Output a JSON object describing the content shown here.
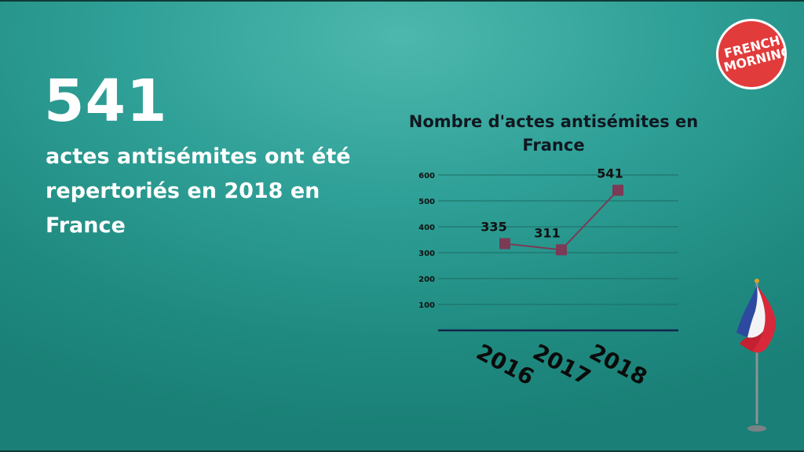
{
  "headline": {
    "value": "541",
    "text": "actes antisémites ont été repertoriés en 2018 en France"
  },
  "logo": {
    "line1": "FRENCH",
    "line2": "MORNING"
  },
  "chart_data": {
    "type": "line",
    "title": "Nombre d'actes antisémites en France",
    "categories": [
      "2016",
      "2017",
      "2018"
    ],
    "yticks": [
      100,
      200,
      300,
      400,
      500,
      600
    ],
    "ylim": [
      0,
      600
    ],
    "series": [
      {
        "values": [
          335,
          311,
          541
        ],
        "labels": [
          "335",
          "311",
          "541"
        ]
      }
    ],
    "grid": true,
    "colors": {
      "line": "#7b3a55",
      "marker": "#7b3a55",
      "axis": "#14254a",
      "grid": "#1d6b63"
    }
  }
}
